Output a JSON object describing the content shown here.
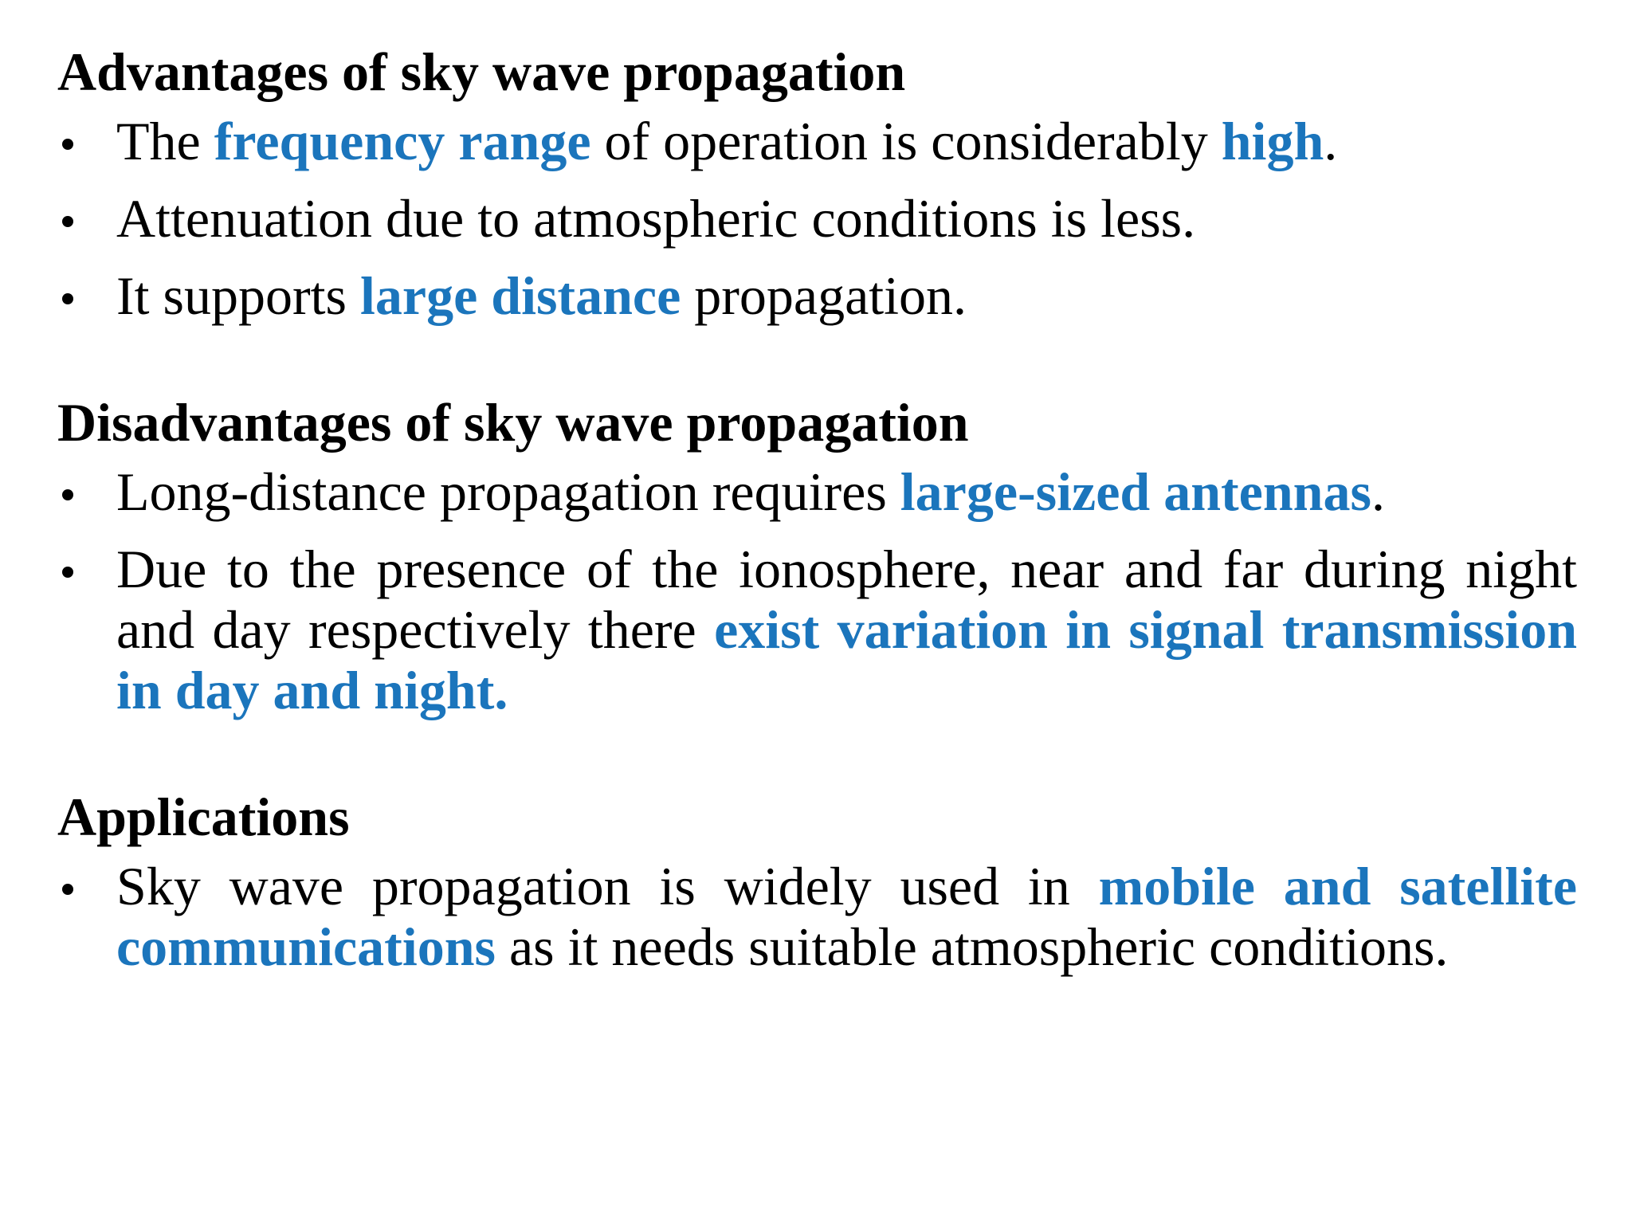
{
  "sections": [
    {
      "heading": "Advantages of sky wave propagation",
      "items": [
        [
          {
            "text": "The "
          },
          {
            "text": "frequency range",
            "em": true
          },
          {
            "text": " of operation is considerably "
          },
          {
            "text": "high",
            "em": true
          },
          {
            "text": "."
          }
        ],
        [
          {
            "text": "Attenuation due to atmospheric conditions is less."
          }
        ],
        [
          {
            "text": "It supports "
          },
          {
            "text": "large distance",
            "em": true
          },
          {
            "text": " propagation."
          }
        ]
      ]
    },
    {
      "heading": "Disadvantages of sky wave propagation",
      "items": [
        [
          {
            "text": "Long-distance propagation requires "
          },
          {
            "text": "large-sized antennas",
            "em": true
          },
          {
            "text": "."
          }
        ],
        [
          {
            "text": "Due to the presence of the ionosphere, near and far during night and day respectively there "
          },
          {
            "text": "exist variation in signal transmission in day and night.",
            "em": true
          }
        ]
      ]
    },
    {
      "heading": "Applications",
      "items": [
        [
          {
            "text": "Sky wave propagation is widely used in "
          },
          {
            "text": "mobile and satellite communications",
            "em": true
          },
          {
            "text": " as it needs suitable atmospheric conditions."
          }
        ]
      ]
    }
  ]
}
